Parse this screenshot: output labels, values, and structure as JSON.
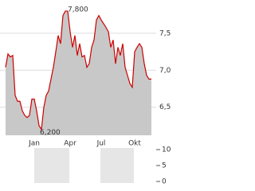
{
  "chart_data": [
    {
      "type": "line",
      "categories": [
        null,
        null,
        null,
        null,
        null,
        null,
        null,
        null,
        null,
        null,
        null,
        null,
        "Jan",
        null,
        null,
        null,
        null,
        null,
        null,
        null,
        null,
        null,
        null,
        null,
        null,
        null,
        null,
        "Apr",
        null,
        null,
        null,
        null,
        null,
        null,
        null,
        null,
        null,
        null,
        null,
        null,
        "Jul",
        null,
        null,
        null,
        null,
        null,
        null,
        null,
        null,
        null,
        null,
        null,
        null,
        null,
        "Okt",
        null,
        null,
        null,
        null,
        null,
        null,
        null
      ],
      "values": [
        7.04,
        7.22,
        7.18,
        7.2,
        6.66,
        6.58,
        6.58,
        6.45,
        6.39,
        6.36,
        6.39,
        6.61,
        6.61,
        6.45,
        6.25,
        6.2,
        6.5,
        6.66,
        6.72,
        6.88,
        7.04,
        7.25,
        7.47,
        7.36,
        7.74,
        7.8,
        7.8,
        7.52,
        7.31,
        7.47,
        7.2,
        7.36,
        7.18,
        7.2,
        7.04,
        7.09,
        7.31,
        7.41,
        7.68,
        7.74,
        7.68,
        7.63,
        7.58,
        7.52,
        7.31,
        7.41,
        7.09,
        7.31,
        7.2,
        7.36,
        7.04,
        6.93,
        6.82,
        6.77,
        7.25,
        7.31,
        7.36,
        7.31,
        7.09,
        6.93,
        6.88,
        6.88
      ],
      "color": "#cc0000",
      "fill": "#c8c8c8",
      "max_label": "7,800",
      "min_label": "6,200",
      "ylim": [
        6.12,
        7.95
      ],
      "yticks": [
        {
          "value": 6.5,
          "label": "6,5"
        },
        {
          "value": 7.0,
          "label": "7,0"
        },
        {
          "value": 7.5,
          "label": "7,5"
        }
      ],
      "grid": true
    },
    {
      "type": "bar",
      "ylim": [
        0,
        10
      ],
      "yticks": [
        0,
        5,
        10
      ]
    }
  ]
}
